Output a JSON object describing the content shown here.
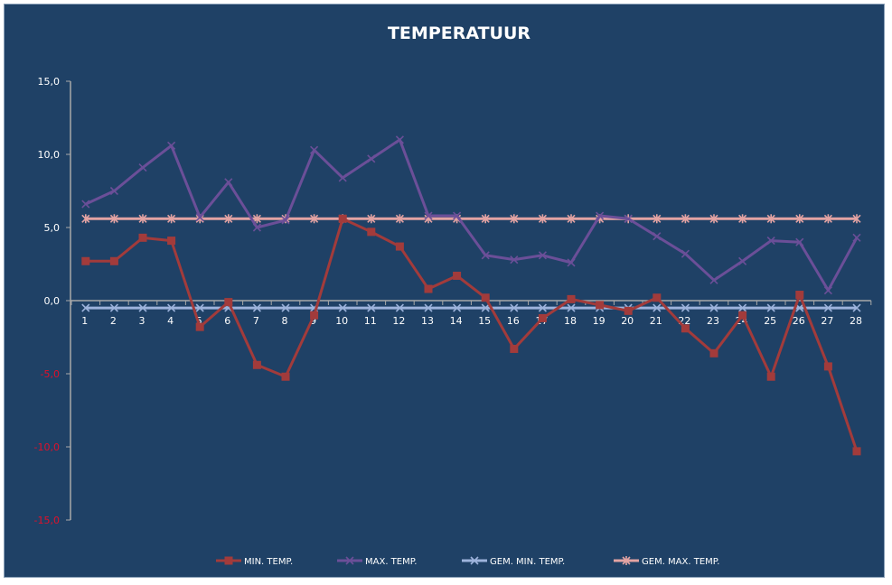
{
  "chart_data": {
    "type": "line",
    "title": "TEMPERATUUR",
    "xlabel": "",
    "ylabel": "",
    "ylim": [
      -15,
      15
    ],
    "yticks": [
      "15,0",
      "10,0",
      "5,0",
      "0,0",
      "-5,0",
      "-10,0",
      "-15,0"
    ],
    "ytick_values": [
      15,
      10,
      5,
      0,
      -5,
      -10,
      -15
    ],
    "positive_tick_color": "#ffffff",
    "negative_tick_color": "#e0102a",
    "x": [
      "1",
      "2",
      "3",
      "4",
      "5",
      "6",
      "7",
      "8",
      "9",
      "10",
      "11",
      "12",
      "13",
      "14",
      "15",
      "16",
      "17",
      "18",
      "19",
      "20",
      "21",
      "22",
      "23",
      "24",
      "25",
      "26",
      "27",
      "28"
    ],
    "grid": false,
    "legend_position": "bottom",
    "series": [
      {
        "name": "MIN. TEMP.",
        "color": "#a23b3b",
        "marker": "square",
        "values": [
          2.7,
          2.7,
          4.3,
          4.1,
          -1.8,
          -0.1,
          -4.4,
          -5.2,
          -1.0,
          5.6,
          4.7,
          3.7,
          0.8,
          1.7,
          0.2,
          -3.3,
          -1.2,
          0.1,
          -0.3,
          -0.7,
          0.2,
          -1.9,
          -3.6,
          -1.0,
          -5.2,
          0.4,
          -4.5,
          -10.3
        ]
      },
      {
        "name": "MAX. TEMP.",
        "color": "#6b4f98",
        "marker": "x",
        "values": [
          6.6,
          7.5,
          9.1,
          10.6,
          5.7,
          8.1,
          5.0,
          5.5,
          10.3,
          8.4,
          9.7,
          11.0,
          5.8,
          5.8,
          3.1,
          2.8,
          3.1,
          2.6,
          5.8,
          5.6,
          4.4,
          3.2,
          1.4,
          2.7,
          4.1,
          4.0,
          0.7,
          4.3
        ]
      },
      {
        "name": "GEM. MIN. TEMP.",
        "color": "#9db3dc",
        "marker": "x",
        "values": [
          -0.5,
          -0.5,
          -0.5,
          -0.5,
          -0.5,
          -0.5,
          -0.5,
          -0.5,
          -0.5,
          -0.5,
          -0.5,
          -0.5,
          -0.5,
          -0.5,
          -0.5,
          -0.5,
          -0.5,
          -0.5,
          -0.5,
          -0.5,
          -0.5,
          -0.5,
          -0.5,
          -0.5,
          -0.5,
          -0.5,
          -0.5,
          -0.5
        ]
      },
      {
        "name": "GEM. MAX. TEMP.",
        "color": "#e3a3a3",
        "marker": "star",
        "values": [
          5.6,
          5.6,
          5.6,
          5.6,
          5.6,
          5.6,
          5.6,
          5.6,
          5.6,
          5.6,
          5.6,
          5.6,
          5.6,
          5.6,
          5.6,
          5.6,
          5.6,
          5.6,
          5.6,
          5.6,
          5.6,
          5.6,
          5.6,
          5.6,
          5.6,
          5.6,
          5.6,
          5.6
        ]
      }
    ]
  }
}
